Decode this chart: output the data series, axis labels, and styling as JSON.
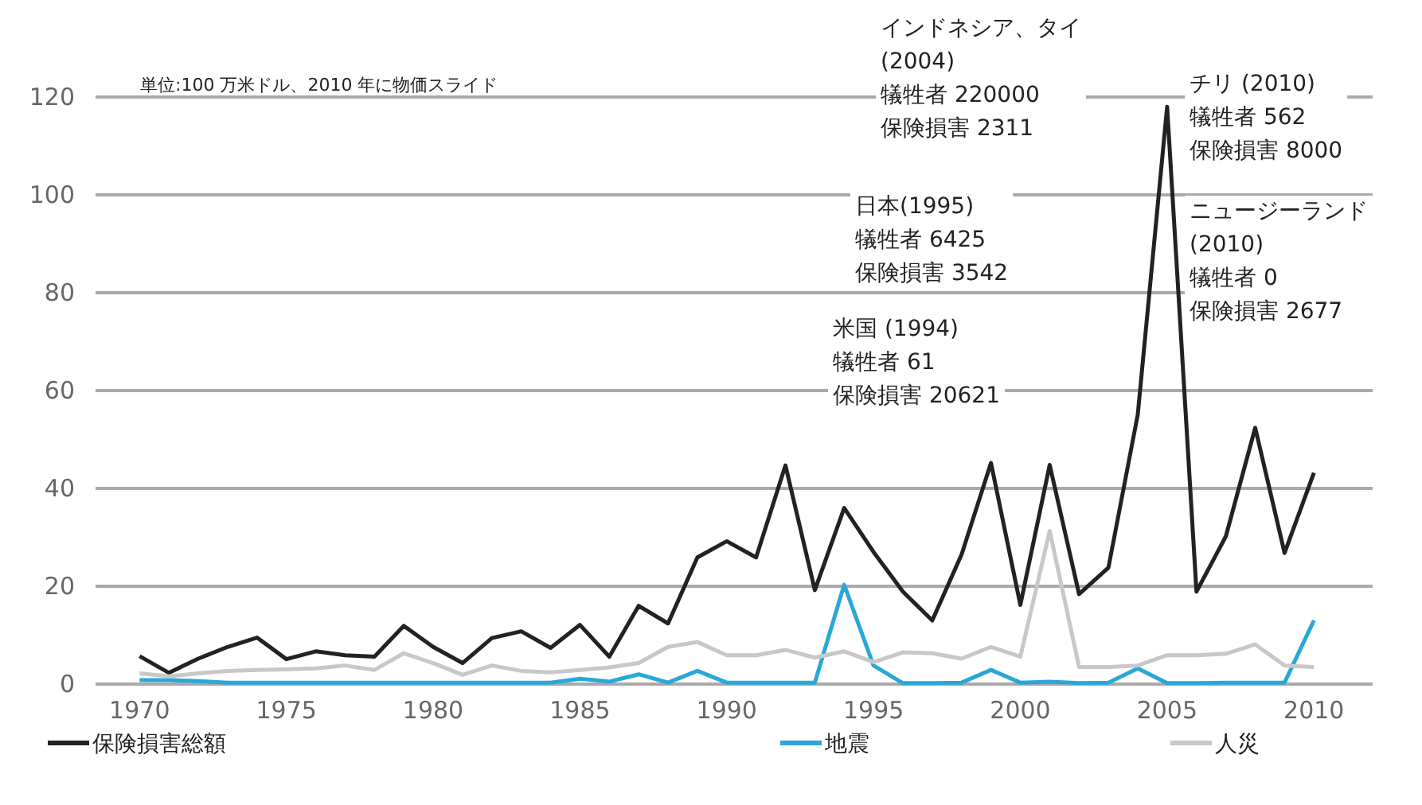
{
  "chart_data": {
    "type": "line",
    "x": [
      1970,
      1971,
      1972,
      1973,
      1974,
      1975,
      1976,
      1977,
      1978,
      1979,
      1980,
      1981,
      1982,
      1983,
      1984,
      1985,
      1986,
      1987,
      1988,
      1989,
      1990,
      1991,
      1992,
      1993,
      1994,
      1995,
      1996,
      1997,
      1998,
      1999,
      2000,
      2001,
      2002,
      2003,
      2004,
      2005,
      2006,
      2007,
      2008,
      2009,
      2010
    ],
    "series": [
      {
        "name": "保険損害総額",
        "color": "#222222",
        "values": [
          5.7,
          2.3,
          5.2,
          7.6,
          9.5,
          5.1,
          6.7,
          5.9,
          5.6,
          11.9,
          7.6,
          4.3,
          9.4,
          10.8,
          7.4,
          12.1,
          5.6,
          16.0,
          12.4,
          25.9,
          29.2,
          25.9,
          44.7,
          19.2,
          36.0,
          27.0,
          18.9,
          13.0,
          26.5,
          45.2,
          16.2,
          44.8,
          18.4,
          23.8,
          55.1,
          118,
          18.9,
          30.2,
          52.4,
          26.8,
          43.2
        ]
      },
      {
        "name": "地震",
        "color": "#29a8d8",
        "values": [
          0.8,
          0.8,
          0.6,
          0.3,
          0.3,
          0.3,
          0.3,
          0.3,
          0.3,
          0.3,
          0.3,
          0.3,
          0.3,
          0.3,
          0.3,
          1.1,
          0.5,
          2.0,
          0.3,
          2.7,
          0.3,
          0.3,
          0.3,
          0.3,
          20.3,
          3.8,
          0.2,
          0.2,
          0.3,
          2.9,
          0.3,
          0.5,
          0.2,
          0.3,
          3.2,
          0.2,
          0.2,
          0.3,
          0.3,
          0.3,
          13.0
        ]
      },
      {
        "name": "人災",
        "color": "#c8c8c8",
        "values": [
          2.2,
          1.6,
          2.2,
          2.7,
          2.9,
          3.0,
          3.2,
          3.8,
          2.9,
          6.3,
          4.3,
          1.9,
          3.8,
          2.7,
          2.4,
          2.9,
          3.4,
          4.3,
          7.6,
          8.6,
          5.9,
          5.9,
          7.0,
          5.4,
          6.7,
          4.5,
          6.5,
          6.3,
          5.2,
          7.6,
          5.6,
          31.3,
          3.5,
          3.5,
          3.8,
          5.9,
          5.9,
          6.2,
          8.1,
          3.8,
          3.5
        ]
      }
    ],
    "xlim": [
      1968.5,
      2012
    ],
    "xticks": [
      1970,
      1975,
      1980,
      1985,
      1990,
      1995,
      2000,
      2005,
      2010
    ],
    "ylim": [
      0,
      120
    ],
    "yticks": [
      0,
      20,
      40,
      60,
      80,
      100,
      120
    ],
    "grid": "y",
    "legend": "bottom",
    "line_style": "solid",
    "annotations": [
      "単位:100 万米ドル、2010 年に物価スライド",
      "インドネシア、タイ\n(2004)\n犠牲者 220000\n保険損害 2311",
      "チリ (2010)\n犠牲者 562\n保険損害 8000",
      "日本(1995)\n犠牲者 6425\n保険損害 3542",
      "ニュージーランド\n(2010)\n犠牲者 0\n保険損害 2677",
      "米国 (1994)\n犠牲者 61\n保険損害 20621"
    ]
  }
}
